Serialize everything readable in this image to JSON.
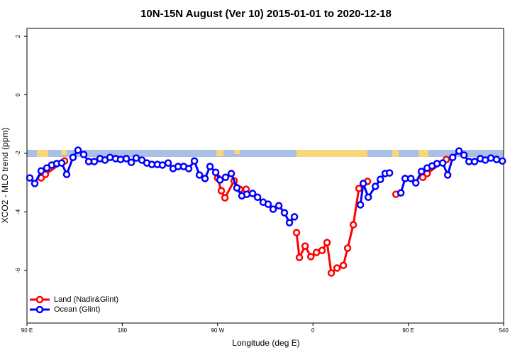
{
  "chart_data": {
    "type": "line",
    "title": "10N-15N August (Ver 10)   2015-01-01 to 2020-12-18",
    "x_label": "Longitude (deg E)",
    "y_label": "XCO2 - MLO trend (ppm)",
    "xlim": [
      90,
      540
    ],
    "xticks": [
      {
        "value": 90,
        "label": "90 E"
      },
      180,
      {
        "value": 270,
        "label": "90 W"
      },
      {
        "value": 360,
        "label": "0"
      },
      {
        "value": 450,
        "label": "90 E"
      },
      540
    ],
    "ylim": [
      -7.8,
      2.27
    ],
    "yticks": [
      -6,
      -4,
      -2,
      0,
      2
    ],
    "legend": "bottom-left",
    "series": [
      {
        "name": "Land (Nadir&Glint)",
        "color": "#ff0000",
        "x": [
          103.4,
          107.4,
          125.5,
          null,
          270,
          273.5,
          276.9,
          285.6,
          291,
          296.9,
          null,
          344.5,
          347.2,
          352.6,
          358,
          363.3,
          368.6,
          373.3,
          377.3,
          382.7,
          388.7,
          392.7,
          398.1,
          403.4,
          411.5,
          null,
          438.3,
          null,
          463.7,
          467.8,
          485.9
        ],
        "values": [
          -2.84,
          -2.72,
          -2.26,
          null,
          -2.84,
          -3.28,
          -3.52,
          -2.94,
          -3.23,
          -3.23,
          null,
          -4.71,
          -5.56,
          -5.17,
          -5.53,
          -5.39,
          -5.32,
          -5.05,
          -6.09,
          -5.92,
          -5.83,
          -5.24,
          -4.44,
          -3.2,
          -2.96,
          null,
          -3.4,
          null,
          -2.82,
          -2.69,
          -2.21
        ]
      },
      {
        "name": "Ocean (Glint)",
        "color": "#0000ff",
        "x": [
          92.7,
          97.4,
          103.4,
          108.8,
          113.4,
          118.1,
          122.8,
          127.5,
          133.5,
          138.2,
          143.6,
          148.3,
          153.6,
          159,
          163.7,
          168.4,
          173.7,
          178.4,
          183.8,
          188.5,
          193.1,
          198.5,
          203.2,
          207.9,
          213.2,
          217.9,
          223.3,
          228,
          232.7,
          238,
          242.7,
          248.1,
          252.8,
          258.1,
          262.8,
          268.2,
          272.2,
          277.5,
          282.9,
          288.2,
          292.9,
          297.6,
          303,
          307.7,
          313,
          317.7,
          322.4,
          327.8,
          333.1,
          337.8,
          342.5,
          null,
          404.8,
          407.5,
          412.2,
          418.9,
          423.6,
          428.2,
          432.3,
          null,
          443,
          447,
          452.4,
          457.1,
          462.4,
          467.8,
          472.4,
          477.1,
          482.5,
          487.2,
          491.9,
          497.9,
          502.6,
          507.3,
          512.6,
          518,
          522.7,
          528,
          533.4,
          538.8
        ],
        "values": [
          -2.84,
          -3.03,
          -2.6,
          -2.5,
          -2.4,
          -2.35,
          -2.33,
          -2.72,
          -2.14,
          -1.89,
          -2.04,
          -2.28,
          -2.28,
          -2.18,
          -2.23,
          -2.14,
          -2.18,
          -2.21,
          -2.18,
          -2.31,
          -2.16,
          -2.23,
          -2.33,
          -2.38,
          -2.38,
          -2.4,
          -2.33,
          -2.52,
          -2.45,
          -2.45,
          -2.52,
          -2.26,
          -2.74,
          -2.86,
          -2.45,
          -2.65,
          -2.91,
          -2.82,
          -2.69,
          -3.18,
          -3.45,
          -3.4,
          -3.37,
          -3.5,
          -3.67,
          -3.74,
          -3.91,
          -3.79,
          -4.03,
          -4.37,
          -4.17,
          null,
          -3.76,
          -3.03,
          -3.5,
          -3.13,
          -2.89,
          -2.69,
          -2.67,
          null,
          -3.35,
          -2.86,
          -2.86,
          -3.01,
          -2.62,
          -2.5,
          -2.43,
          -2.35,
          -2.33,
          -2.74,
          -2.14,
          -1.92,
          -2.06,
          -2.28,
          -2.28,
          -2.18,
          -2.23,
          -2.16,
          -2.21,
          -2.26
        ]
      }
    ]
  }
}
